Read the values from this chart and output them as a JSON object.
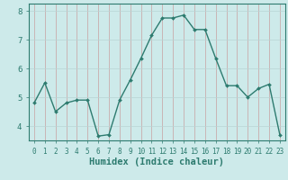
{
  "x": [
    0,
    1,
    2,
    3,
    4,
    5,
    6,
    7,
    8,
    9,
    10,
    11,
    12,
    13,
    14,
    15,
    16,
    17,
    18,
    19,
    20,
    21,
    22,
    23
  ],
  "y": [
    4.8,
    5.5,
    4.5,
    4.8,
    4.9,
    4.9,
    3.65,
    3.7,
    4.9,
    5.6,
    6.35,
    7.15,
    7.75,
    7.75,
    7.85,
    7.35,
    7.35,
    6.35,
    5.4,
    5.4,
    5.0,
    5.3,
    5.45,
    3.7
  ],
  "line_color": "#2d7b6f",
  "marker": "D",
  "marker_size": 2,
  "bg_color": "#cdeaea",
  "grid_color_v": "#c8a0a0",
  "grid_color_h": "#b8d4d4",
  "xlabel": "Humidex (Indice chaleur)",
  "xlabel_fontsize": 7.5,
  "xlim": [
    -0.5,
    23.5
  ],
  "ylim": [
    3.5,
    8.25
  ],
  "yticks": [
    4,
    5,
    6,
    7,
    8
  ],
  "xticks": [
    0,
    1,
    2,
    3,
    4,
    5,
    6,
    7,
    8,
    9,
    10,
    11,
    12,
    13,
    14,
    15,
    16,
    17,
    18,
    19,
    20,
    21,
    22,
    23
  ],
  "tick_color": "#2d7b6f",
  "spine_color": "#2d7b6f",
  "linewidth": 1.0
}
